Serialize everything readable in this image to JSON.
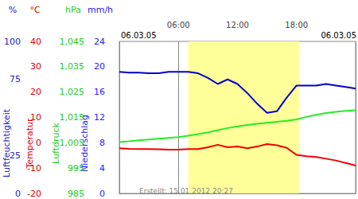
{
  "chart_data": {
    "type": "line",
    "dates": [
      "06.03.05",
      "06.03.05"
    ],
    "footnote": "Erstellt: 15.01.2012 20:27",
    "x": [
      0,
      1,
      2,
      3,
      4,
      5,
      6,
      7,
      8,
      9,
      10,
      11,
      12,
      13,
      14,
      15,
      16,
      17,
      18,
      19,
      20,
      21,
      22,
      23,
      24
    ],
    "xlim": [
      0,
      24
    ],
    "xticks": [
      {
        "value": 6,
        "label": "06:00"
      },
      {
        "value": 12,
        "label": "12:00"
      },
      {
        "value": 18,
        "label": "18:00"
      }
    ],
    "grid": true,
    "daylight": [
      7,
      18.25
    ],
    "axes": [
      {
        "unit": "%",
        "title": "Luftfeuchtigkeit",
        "color": "#2222cc",
        "lim": [
          0,
          100
        ],
        "ticks": [
          0,
          25,
          75,
          100
        ]
      },
      {
        "unit": "°C",
        "title": "Temperatur",
        "color": "#dd0000",
        "lim": [
          -20,
          40
        ],
        "ticks": [
          -20,
          -10,
          0,
          10,
          20,
          30,
          40
        ]
      },
      {
        "unit": "hPa",
        "title": "Luftdruck",
        "color": "#22cc22",
        "lim": [
          985,
          1045
        ],
        "ticks": [
          985,
          995,
          1005,
          1015,
          1025,
          1035,
          1045
        ]
      },
      {
        "unit": "mm/h",
        "title": "Niederschlag",
        "color": "#2222ff",
        "lim": [
          0,
          24
        ],
        "ticks": [
          0,
          4,
          8,
          12,
          16,
          20,
          24
        ]
      }
    ],
    "series": [
      {
        "name": "Luftfeuchtigkeit",
        "axis": "%",
        "color": "#0000cc",
        "values": [
          80,
          79.5,
          79.5,
          79,
          79,
          80,
          80,
          80,
          79,
          76,
          72,
          75,
          72,
          66,
          59,
          53,
          54,
          63,
          71,
          71,
          71,
          72,
          71,
          70,
          69
        ]
      },
      {
        "name": "Temperatur",
        "axis": "°C",
        "color": "#ee0000",
        "values": [
          -2.2,
          -2.4,
          -2.5,
          -2.5,
          -2.6,
          -2.7,
          -2.7,
          -2.5,
          -2.5,
          -1.8,
          -0.8,
          -1.8,
          -1.5,
          -2.2,
          -1.5,
          -0.5,
          -1.0,
          -2.0,
          -4.8,
          -5.3,
          -5.6,
          -6.3,
          -7.0,
          -8.0,
          -9.0
        ]
      },
      {
        "name": "Luftdruck",
        "axis": "hPa",
        "color": "#22ee22",
        "values": [
          1005.3,
          1005.6,
          1006,
          1006.3,
          1006.6,
          1006.9,
          1007.2,
          1007.8,
          1008.4,
          1009.1,
          1010,
          1010.8,
          1011.5,
          1012,
          1012.5,
          1012.9,
          1013.3,
          1013.7,
          1014.2,
          1015.2,
          1016,
          1016.7,
          1017.2,
          1017.6,
          1017.8
        ]
      }
    ]
  }
}
